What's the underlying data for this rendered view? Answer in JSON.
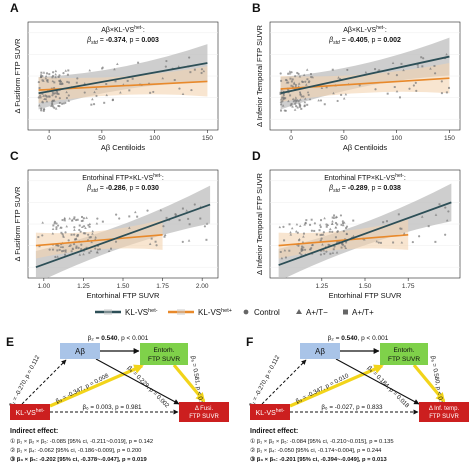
{
  "colors": {
    "kl_vs_het_neg": "#2d4f57",
    "kl_vs_het_pos": "#e8892b",
    "ci_band": "#bdbdbd",
    "box_ab": "#a9c4e8",
    "box_entorh": "#7fd14a",
    "box_outcome": "#cc1f1f",
    "box_klvs": "#cc1f1f",
    "arrow_sig": "#f2d41a"
  },
  "panels": {
    "A": {
      "letter": "A",
      "ylabel": "Δ Fusiform FTP SUVR",
      "xlabel": "Aβ Centiloids",
      "title": "Aβ×KL-VS",
      "title_sup": "het-",
      "stat_label": "β",
      "stat_sub": "std",
      "stat_mid": " = ",
      "beta": "-0.374",
      "p_text": ", p = ",
      "p": "0.003"
    },
    "B": {
      "letter": "B",
      "ylabel": "Δ Inferior Temporal FTP SUVR",
      "xlabel": "Aβ Centiloids",
      "title": "Aβ×KL-VS",
      "title_sup": "het-",
      "stat_label": "β",
      "stat_sub": "std",
      "stat_mid": " = ",
      "beta": "-0.405",
      "p_text": ", p = ",
      "p": "0.002"
    },
    "C": {
      "letter": "C",
      "ylabel": "Δ Fusiform FTP SUVR",
      "xlabel": "Entorhinal FTP SUVR",
      "title": "Entorhinal FTP×KL-VS",
      "title_sup": "het-",
      "stat_label": "β",
      "stat_sub": "std",
      "stat_mid": " = ",
      "beta": "-0.286",
      "p_text": ", p = ",
      "p": "0.030"
    },
    "D": {
      "letter": "D",
      "ylabel": "Δ Inferior Temporal FTP SUVR",
      "xlabel": "Entorhinal FTP SUVR",
      "title": "Entorhinal FTP×KL-VS",
      "title_sup": "het-",
      "stat_label": "β",
      "stat_sub": "std",
      "stat_mid": " = ",
      "beta": "-0.289",
      "p_text": ", p = ",
      "p": "0.038"
    }
  },
  "legend": {
    "line1_label": "KL-VS",
    "line1_sup": "het-",
    "line2_label": "KL-VS",
    "line2_sup": "het+",
    "shape1": "Control",
    "shape2": "A+/T−",
    "shape3": "A+/T+"
  },
  "chart_data": [
    {
      "type": "scatter",
      "panel": "A",
      "ylabel": "Δ Fusiform FTP SUVR",
      "xlabel": "Aβ Centiloids",
      "x_ticks": [
        "0",
        "50",
        "100",
        "150"
      ],
      "xlim": [
        -20,
        160
      ],
      "ylim": [
        -0.15,
        0.35
      ],
      "series": [
        {
          "name": "KL-VS het-",
          "fit": [
            [
              -10,
              0.02
            ],
            [
              150,
              0.16
            ]
          ]
        },
        {
          "name": "KL-VS het+",
          "fit": [
            [
              -10,
              0.035
            ],
            [
              150,
              0.075
            ]
          ]
        }
      ]
    },
    {
      "type": "scatter",
      "panel": "B",
      "ylabel": "Δ Inferior Temporal FTP SUVR",
      "xlabel": "Aβ Centiloids",
      "x_ticks": [
        "0",
        "50",
        "100",
        "150"
      ],
      "xlim": [
        -20,
        160
      ],
      "ylim": [
        -0.15,
        0.35
      ],
      "series": [
        {
          "name": "KL-VS het-",
          "fit": [
            [
              -10,
              0.02
            ],
            [
              150,
              0.19
            ]
          ]
        },
        {
          "name": "KL-VS het+",
          "fit": [
            [
              -10,
              0.04
            ],
            [
              150,
              0.09
            ]
          ]
        }
      ]
    },
    {
      "type": "scatter",
      "panel": "C",
      "ylabel": "Δ Fusiform FTP SUVR",
      "xlabel": "Entorhinal FTP SUVR",
      "x_ticks": [
        "1.00",
        "1.25",
        "1.50",
        "1.75",
        "2.00"
      ],
      "xlim": [
        0.9,
        2.1
      ],
      "ylim": [
        -0.15,
        0.35
      ],
      "series": [
        {
          "name": "KL-VS het-",
          "fit": [
            [
              0.95,
              -0.1
            ],
            [
              2.05,
              0.19
            ]
          ]
        },
        {
          "name": "KL-VS het+",
          "fit": [
            [
              0.95,
              0.0
            ],
            [
              1.75,
              0.05
            ]
          ]
        }
      ]
    },
    {
      "type": "scatter",
      "panel": "D",
      "ylabel": "Δ Inferior Temporal FTP SUVR",
      "xlabel": "Entorhinal FTP SUVR",
      "x_ticks": [
        "1.25",
        "1.50",
        "1.75"
      ],
      "xlim": [
        0.95,
        2.05
      ],
      "ylim": [
        -0.15,
        0.35
      ],
      "series": [
        {
          "name": "KL-VS het-",
          "fit": [
            [
              1.0,
              -0.09
            ],
            [
              2.0,
              0.2
            ]
          ]
        },
        {
          "name": "KL-VS het+",
          "fit": [
            [
              1.0,
              0.0
            ],
            [
              1.75,
              0.05
            ]
          ]
        }
      ]
    }
  ],
  "mediation": {
    "E": {
      "letter": "E",
      "box_ab": "Aβ",
      "box_entorh": "Entorh.\nFTP SUVR",
      "box_klvs": "KL-VS",
      "box_klvs_sup": "het-",
      "box_outcome": "Δ Fusi.\nFTP SUVR",
      "beta2": "β₂ = ",
      "beta2_val": "0.540",
      "beta2_p": ", p < 0.001",
      "beta1": "β₁ = -0.270, p = 0.112",
      "beta3": "β₃ = -0.347, p = 0.008",
      "beta4": "β₄ = 0.229, p = 0.002",
      "beta5": "β₅ = 0.581, p < 0.001",
      "beta6": "β₆ = 0.003, p = 0.981",
      "indirect_title": "Indirect effect:",
      "ind1": "① β₁ × β₂ × β₅: -0.085 [95% ci, -0.211~0.019], p = 0.142",
      "ind2": "② β₁ × β₄: -0.062 [95% ci, -0.186~0.009], p = 0.200",
      "ind3": "③ β₃ × β₅: -0.202 [95% ci, -0.378~-0.047], p = 0.019"
    },
    "F": {
      "letter": "F",
      "box_ab": "Aβ",
      "box_entorh": "Entorh.\nFTP SUVR",
      "box_klvs": "KL-VS",
      "box_klvs_sup": "het-",
      "box_outcome": "Δ Inf. temp.\nFTP SUVR",
      "beta2": "β₂ = ",
      "beta2_val": "0.540",
      "beta2_p": ", p < 0.001",
      "beta1": "β₁ = -0.270, p = 0.112",
      "beta3": "β₃ = -0.347, p = 0.010",
      "beta4": "β₄ = 0.184, p = 0.018",
      "beta5": "β₅ = 0.580, p < 0.001",
      "beta6": "β₆ = -0.027, p = 0.833",
      "indirect_title": "Indirect effect:",
      "ind1": "① β₁ × β₂ × β₅: -0.084 [95% ci, -0.210~0.015], p = 0.135",
      "ind2": "② β₁ × β₄: -0.050 [95% ci, -0.174~0.004], p = 0.244",
      "ind3": "③ β₃ × β₅: -0.201 [95% ci, -0.394~-0.049], p = 0.013"
    }
  }
}
